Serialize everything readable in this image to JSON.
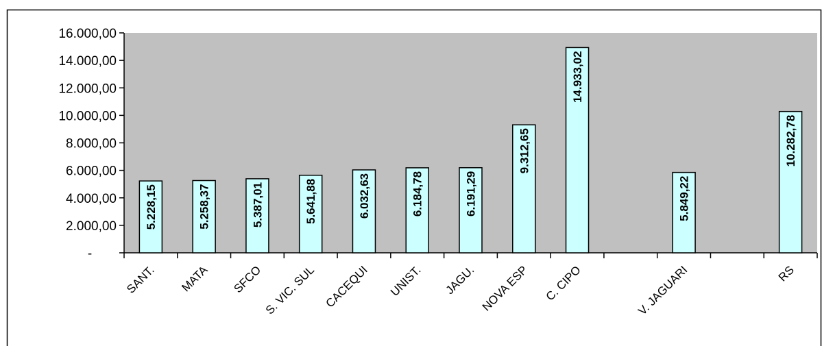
{
  "chart_data": {
    "type": "bar",
    "categories": [
      "SANT.",
      "MATA",
      "SFCO",
      "S. VIC. SUL",
      "CACEQUI",
      "UNIST.",
      "JAGU.",
      "NOVA ESP",
      "C. CIPO",
      "",
      "V. JAGUARI",
      "",
      "RS"
    ],
    "values": [
      5228.15,
      5258.37,
      5387.01,
      5641.88,
      6032.63,
      6184.78,
      6191.29,
      9312.65,
      14933.02,
      null,
      5849.22,
      null,
      10282.78
    ],
    "data_labels": [
      "5.228,15",
      "5.258,37",
      "5.387,01",
      "5.641,88",
      "6.032,63",
      "6.184,78",
      "6.191,29",
      "9.312,65",
      "14.933,02",
      "",
      "5.849,22",
      "",
      "10.282,78"
    ],
    "ylim": [
      0,
      16000
    ],
    "y_ticks": [
      0,
      2000,
      4000,
      6000,
      8000,
      10000,
      12000,
      14000,
      16000
    ],
    "y_tick_labels": [
      "-",
      "2.000,00",
      "4.000,00",
      "6.000,00",
      "8.000,00",
      "10.000,00",
      "12.000,00",
      "14.000,00",
      "16.000,00"
    ],
    "grid": false,
    "colors": {
      "plot_background": "#c0c0c0",
      "bar_fill": "#ccffff",
      "bar_stroke": "#000000"
    }
  }
}
